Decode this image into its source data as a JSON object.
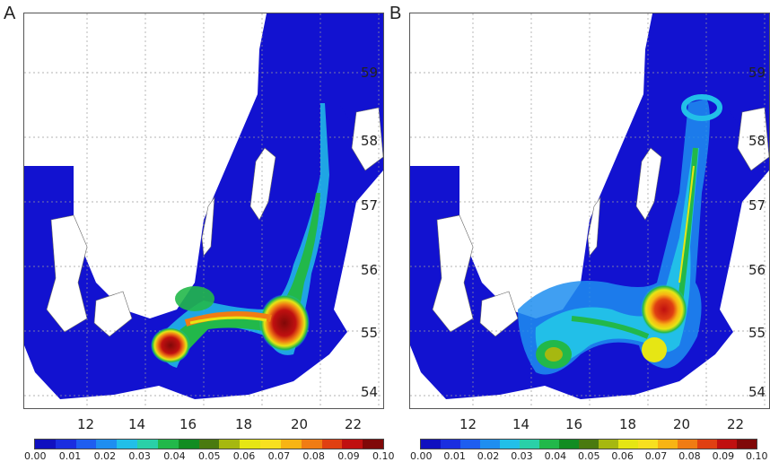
{
  "panels": [
    {
      "label": "A",
      "x_ticks": [
        "12",
        "14",
        "16",
        "18",
        "20",
        "22"
      ],
      "y_ticks": [
        "54",
        "55",
        "56",
        "57",
        "58",
        "59"
      ]
    },
    {
      "label": "B",
      "x_ticks": [
        "12",
        "14",
        "16",
        "18",
        "20",
        "22"
      ],
      "y_ticks": [
        "54",
        "55",
        "56",
        "57",
        "58",
        "59"
      ]
    }
  ],
  "colorbar": {
    "labels": [
      "0.00",
      "0.01",
      "0.02",
      "0.03",
      "0.04",
      "0.05",
      "0.06",
      "0.07",
      "0.08",
      "0.09",
      "0.10"
    ],
    "colors": [
      "#1010c0",
      "#1a2ee0",
      "#1e5ef0",
      "#1e8ef0",
      "#22bfe8",
      "#2ad0a8",
      "#22b84a",
      "#128c22",
      "#4a7a10",
      "#a6b810",
      "#e6e614",
      "#f8e020",
      "#f8b414",
      "#f07c14",
      "#e04012",
      "#c01010",
      "#800808"
    ]
  },
  "colors": {
    "sea": "#1212d0",
    "land": "#ffffff",
    "grid": "#9a9a9a"
  }
}
